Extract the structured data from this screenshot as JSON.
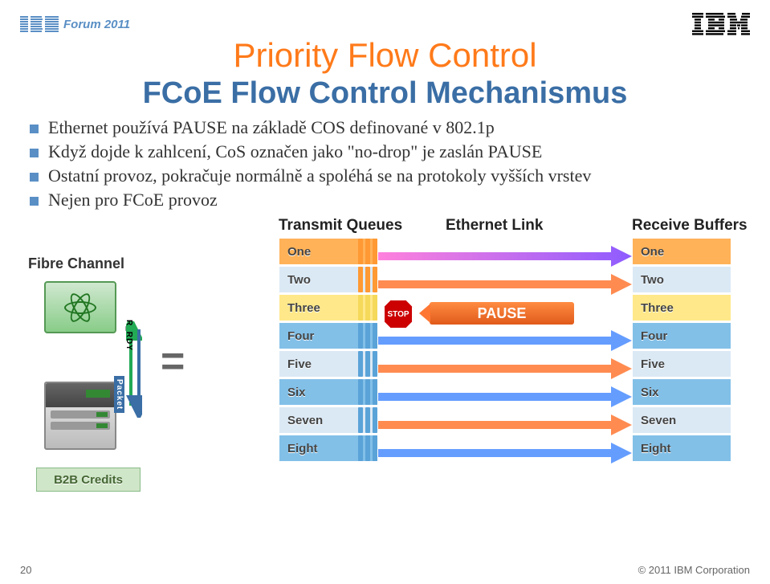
{
  "header": {
    "forum_text": "Forum 2011"
  },
  "titles": {
    "main": "Priority Flow Control",
    "sub": "FCoE Flow Control Mechanismus"
  },
  "bullets": [
    "Ethernet používá PAUSE na základě COS definované v 802.1p",
    "Když dojde k zahlcení, CoS označen jako \"no-drop\" je zaslán PAUSE",
    "Ostatní provoz, pokračuje normálně a spoléhá se na protokoly vyšších vrstev",
    "Nejen pro FCoE provoz"
  ],
  "diagram": {
    "headers": {
      "tx": "Transmit Queues",
      "link": "Ethernet Link",
      "rx": "Receive Buffers"
    },
    "fc_label": "Fibre Channel",
    "credits_label": "B2B Credits",
    "stop_label": "STOP",
    "pause_label": "PAUSE",
    "rrdy_label": "R_RDY",
    "packet_label": "Packet",
    "queues": [
      {
        "label": "One",
        "style": "orange",
        "stripe": "og"
      },
      {
        "label": "Two",
        "style": "",
        "stripe": "og"
      },
      {
        "label": "Three",
        "style": "yellow",
        "stripe": "yl"
      },
      {
        "label": "Four",
        "style": "blue",
        "stripe": ""
      },
      {
        "label": "Five",
        "style": "",
        "stripe": ""
      },
      {
        "label": "Six",
        "style": "blue",
        "stripe": ""
      },
      {
        "label": "Seven",
        "style": "",
        "stripe": ""
      },
      {
        "label": "Eight",
        "style": "blue",
        "stripe": ""
      }
    ],
    "link_lines": [
      {
        "color": "#b84aff",
        "gradient": true
      },
      {
        "color": "#ff7733"
      },
      {
        "color": "none"
      },
      {
        "color": "#4a8cff"
      },
      {
        "color": "#ff7733"
      },
      {
        "color": "#4a8cff"
      },
      {
        "color": "#ff7733"
      },
      {
        "color": "#4a8cff"
      }
    ],
    "colors": {
      "orange": "#ffb258",
      "yellow": "#ffe88a",
      "blue": "#82c0e8",
      "default": "#dbe9f5",
      "stripe_default": "#5aa3d8",
      "stripe_og": "#ff9933",
      "stripe_yl": "#f5d95a",
      "title_color": "#ff7a1a",
      "subtitle_color": "#3a6ea5",
      "bullet_color": "#5a8fc5"
    }
  },
  "footer": {
    "page": "20",
    "copyright": "© 2011 IBM Corporation"
  }
}
